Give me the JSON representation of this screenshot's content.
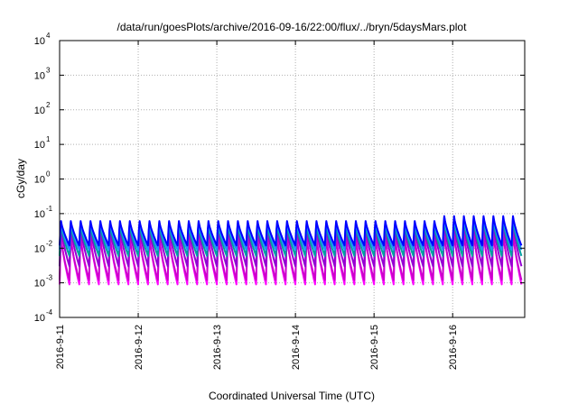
{
  "chart_data": {
    "type": "line",
    "title": "/data/run/goesPlots/archive/2016-09-16/22:00/flux/../bryn/5daysMars.plot",
    "xlabel": "Coordinated Universal Time (UTC)",
    "ylabel": "cGy/day",
    "y_scale": "log",
    "ylim": [
      0.0001,
      10000
    ],
    "xlim": [
      "2016-09-11T00:00",
      "2016-09-16T22:00"
    ],
    "x_ticks": [
      "2016-9-11",
      "2016-9-12",
      "2016-9-13",
      "2016-9-14",
      "2016-9-15",
      "2016-9-16"
    ],
    "y_ticks": [
      {
        "base": "10",
        "exp": "-4"
      },
      {
        "base": "10",
        "exp": "-3"
      },
      {
        "base": "10",
        "exp": "-2"
      },
      {
        "base": "10",
        "exp": "-1"
      },
      {
        "base": "10",
        "exp": "0"
      },
      {
        "base": "10",
        "exp": "1"
      },
      {
        "base": "10",
        "exp": "2"
      },
      {
        "base": "10",
        "exp": "3"
      },
      {
        "base": "10",
        "exp": "4"
      }
    ],
    "grid": true,
    "legend": "none",
    "oscillation": {
      "cycles_per_day": 8,
      "last_day_peak": 0.1
    },
    "series": [
      {
        "color": "#ff00ff",
        "peak": 0.03,
        "trough": 0.0009
      },
      {
        "color": "#cc00cc",
        "peak": 0.025,
        "trough": 0.0012
      },
      {
        "color": "#9400d3",
        "peak": 0.05,
        "trough": 0.003
      },
      {
        "color": "#00a0a0",
        "peak": 0.055,
        "trough": 0.006
      },
      {
        "color": "#1e90ff",
        "peak": 0.065,
        "trough": 0.009
      },
      {
        "color": "#0000ff",
        "peak": 0.07,
        "trough": 0.012
      }
    ]
  }
}
